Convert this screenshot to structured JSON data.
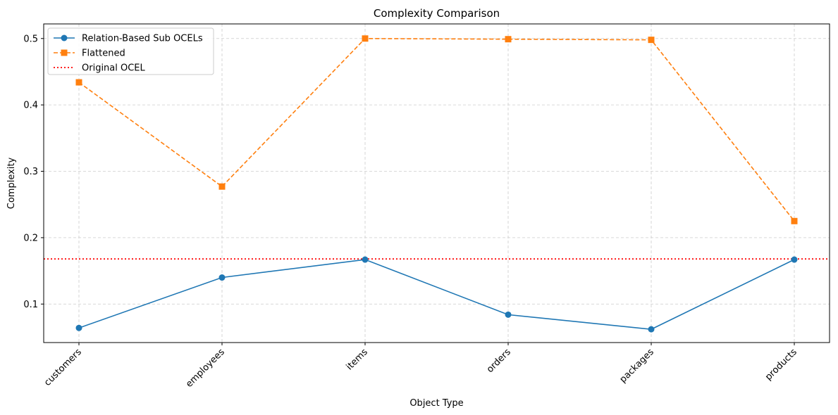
{
  "chart_data": {
    "type": "line",
    "title": "Complexity Comparison",
    "xlabel": "Object Type",
    "ylabel": "Complexity",
    "categories": [
      "customers",
      "employees",
      "items",
      "orders",
      "packages",
      "products"
    ],
    "ylim": [
      0.042,
      0.522
    ],
    "yticks": [
      "0.1",
      "0.2",
      "0.3",
      "0.4",
      "0.5"
    ],
    "grid": true,
    "legend_position": "top-left",
    "series": [
      {
        "name": "Relation-Based Sub OCELs",
        "values": [
          0.064,
          0.14,
          0.167,
          0.084,
          0.062,
          0.167
        ],
        "color": "#1f77b4",
        "marker": "circle",
        "linestyle": "solid"
      },
      {
        "name": "Flattened",
        "values": [
          0.434,
          0.277,
          0.5,
          0.499,
          0.498,
          0.225
        ],
        "color": "#ff7f0e",
        "marker": "square",
        "linestyle": "dashed"
      }
    ],
    "reference_line": {
      "name": "Original OCEL",
      "value": 0.168,
      "color": "#ff0000",
      "linestyle": "dotted"
    }
  }
}
